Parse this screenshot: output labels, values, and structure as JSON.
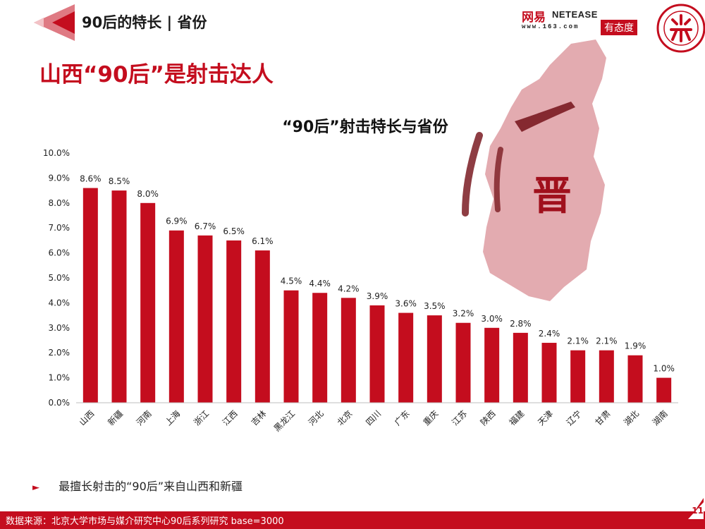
{
  "header": {
    "title": "90后的特长 | 省份"
  },
  "slide": {
    "title": "山西“90后”是射击达人"
  },
  "brand": {
    "wangyi": "网易",
    "netease": "NETEASE",
    "url": "www.163.com",
    "youtaidu": "有态度"
  },
  "map": {
    "character": "晋"
  },
  "chart_data": {
    "type": "bar",
    "title": "“90后”射击特长与省份",
    "categories": [
      "山西",
      "新疆",
      "河南",
      "上海",
      "浙江",
      "江西",
      "吉林",
      "黑龙江",
      "河北",
      "北京",
      "四川",
      "广东",
      "重庆",
      "江苏",
      "陕西",
      "福建",
      "天津",
      "辽宁",
      "甘肃",
      "湖北",
      "湖南"
    ],
    "values": [
      8.6,
      8.5,
      8.0,
      6.9,
      6.7,
      6.5,
      6.1,
      4.5,
      4.4,
      4.2,
      3.9,
      3.6,
      3.5,
      3.2,
      3.0,
      2.8,
      2.4,
      2.1,
      2.1,
      1.9,
      1.0
    ],
    "value_labels": [
      "8.6%",
      "8.5%",
      "8.0%",
      "6.9%",
      "6.7%",
      "6.5%",
      "6.1%",
      "4.5%",
      "4.4%",
      "4.2%",
      "3.9%",
      "3.6%",
      "3.5%",
      "3.2%",
      "3.0%",
      "2.8%",
      "2.4%",
      "2.1%",
      "2.1%",
      "1.9%",
      "1.0%"
    ],
    "yticks": [
      "0.0%",
      "1.0%",
      "2.0%",
      "3.0%",
      "4.0%",
      "5.0%",
      "6.0%",
      "7.0%",
      "8.0%",
      "9.0%",
      "10.0%"
    ],
    "ylim": [
      0,
      10
    ],
    "bar_color": "#c40d1e",
    "grid": false,
    "legend": "none"
  },
  "bullet": {
    "text": "最擅长射击的“90后”来自山西和新疆"
  },
  "footer": {
    "source": "数据来源：北京大学市场与媒介研究中心90后系列研究 base=3000"
  },
  "page": {
    "number": "11"
  },
  "colors": {
    "accent": "#c40d1e",
    "map_fill": "#d98f96"
  }
}
